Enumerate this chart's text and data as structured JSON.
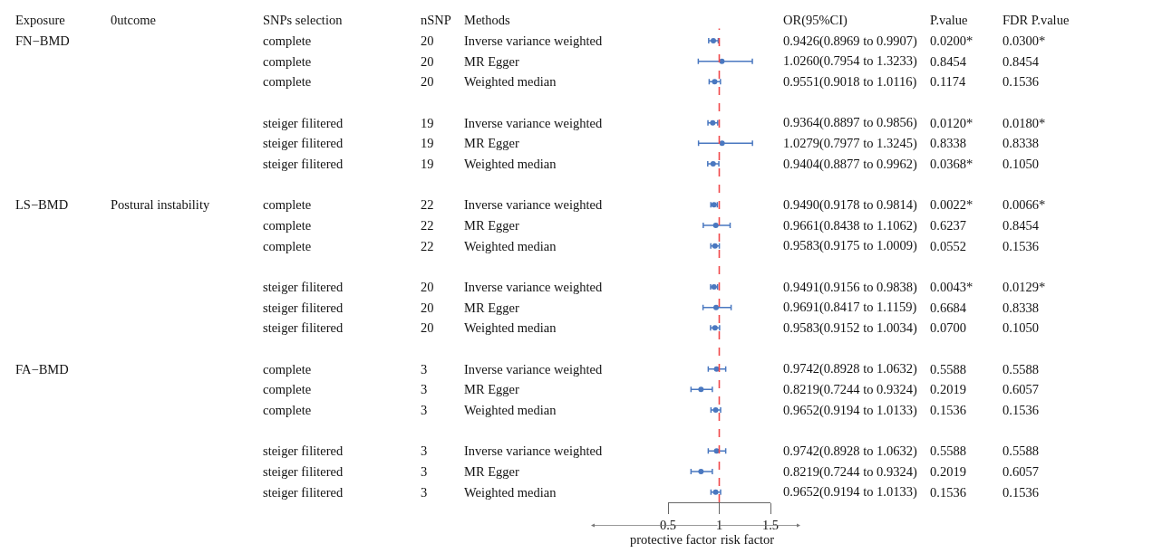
{
  "chart_data": {
    "type": "scatter",
    "orientation": "horizontal",
    "marker": "circle",
    "legend": false,
    "grid": false,
    "tick_labels": "x",
    "categories": [
      null,
      null,
      null,
      null,
      null,
      null,
      null,
      null,
      null,
      null,
      null,
      null,
      null,
      null,
      null,
      null,
      null,
      null,
      null,
      null,
      null,
      null,
      null
    ],
    "xlim": [
      0.5,
      1.5
    ],
    "xticks": [
      0.5,
      1,
      1.5
    ],
    "ref_lines": [
      {
        "axis": "x",
        "value": 1,
        "color": "#f0484a",
        "line_style": "dashed"
      }
    ],
    "annotations": [
      "protective factor",
      "risk factor"
    ],
    "series": [
      {
        "type": "other",
        "name": "Exposure",
        "values": [
          null,
          null,
          null,
          null,
          null,
          null,
          null,
          null,
          null,
          null,
          null,
          null,
          null,
          null,
          null,
          null,
          null,
          null,
          null,
          null,
          null,
          null,
          null
        ],
        "value_labels": [
          "FN−BMD",
          null,
          null,
          null,
          null,
          null,
          null,
          null,
          "LS−BMD",
          null,
          null,
          null,
          null,
          null,
          null,
          null,
          "FA−BMD",
          null,
          null,
          null,
          null,
          null,
          null
        ]
      },
      {
        "type": "other",
        "name": "0utcome",
        "values": [
          null,
          null,
          null,
          null,
          null,
          null,
          null,
          null,
          null,
          null,
          null,
          null,
          null,
          null,
          null,
          null,
          null,
          null,
          null,
          null,
          null,
          null,
          null
        ],
        "value_labels": [
          null,
          null,
          null,
          null,
          null,
          null,
          null,
          null,
          "Postural instability",
          null,
          null,
          null,
          null,
          null,
          null,
          null,
          null,
          null,
          null,
          null,
          null,
          null,
          null
        ]
      },
      {
        "type": "other",
        "name": "SNPs selection",
        "values": [
          null,
          null,
          null,
          null,
          null,
          null,
          null,
          null,
          null,
          null,
          null,
          null,
          null,
          null,
          null,
          null,
          null,
          null,
          null,
          null,
          null,
          null,
          null
        ],
        "value_labels": [
          "complete",
          "complete",
          "complete",
          null,
          "steiger filitered",
          "steiger filitered",
          "steiger filitered",
          null,
          "complete",
          "complete",
          "complete",
          null,
          "steiger filitered",
          "steiger filitered",
          "steiger filitered",
          null,
          "complete",
          "complete",
          "complete",
          null,
          "steiger filitered",
          "steiger filitered",
          "steiger filitered"
        ]
      },
      {
        "type": "other",
        "name": "nSNP",
        "values": [
          null,
          null,
          null,
          null,
          null,
          null,
          null,
          null,
          null,
          null,
          null,
          null,
          null,
          null,
          null,
          null,
          null,
          null,
          null,
          null,
          null,
          null,
          null
        ],
        "value_labels": [
          "20",
          "20",
          "20",
          null,
          "19",
          "19",
          "19",
          null,
          "22",
          "22",
          "22",
          null,
          "20",
          "20",
          "20",
          null,
          "3",
          "3",
          "3",
          null,
          "3",
          "3",
          "3"
        ]
      },
      {
        "type": "other",
        "name": "Methods",
        "values": [
          null,
          null,
          null,
          null,
          null,
          null,
          null,
          null,
          null,
          null,
          null,
          null,
          null,
          null,
          null,
          null,
          null,
          null,
          null,
          null,
          null,
          null,
          null
        ],
        "value_labels": [
          "Inverse variance weighted",
          "MR Egger",
          "Weighted median",
          null,
          "Inverse variance weighted",
          "MR Egger",
          "Weighted median",
          null,
          "Inverse variance weighted",
          "MR Egger",
          "Weighted median",
          null,
          "Inverse variance weighted",
          "MR Egger",
          "Weighted median",
          null,
          "Inverse variance weighted",
          "MR Egger",
          "Weighted median",
          null,
          "Inverse variance weighted",
          "MR Egger",
          "Weighted median"
        ]
      },
      {
        "name": "OR(95%CI)",
        "color": "#4a78c0",
        "values": [
          0.9426,
          1.026,
          0.9551,
          null,
          0.9364,
          1.0279,
          0.9404,
          null,
          0.949,
          0.9661,
          0.9583,
          null,
          0.9491,
          0.9691,
          0.9583,
          null,
          0.9742,
          0.8219,
          0.9652,
          null,
          0.9742,
          0.8219,
          0.9652
        ],
        "errors": [
          [
            0.8969,
            0.9907
          ],
          [
            0.7954,
            1.3233
          ],
          [
            0.9018,
            1.0116
          ],
          null,
          [
            0.8897,
            0.9856
          ],
          [
            0.7977,
            1.3245
          ],
          [
            0.8877,
            0.9962
          ],
          null,
          [
            0.9178,
            0.9814
          ],
          [
            0.8438,
            1.1062
          ],
          [
            0.9175,
            1.0009
          ],
          null,
          [
            0.9156,
            0.9838
          ],
          [
            0.8417,
            1.1159
          ],
          [
            0.9152,
            1.0034
          ],
          null,
          [
            0.8928,
            1.0632
          ],
          [
            0.7244,
            0.9324
          ],
          [
            0.9194,
            1.0133
          ],
          null,
          [
            0.8928,
            1.0632
          ],
          [
            0.7244,
            0.9324
          ],
          [
            0.9194,
            1.0133
          ]
        ],
        "value_labels": [
          "0.9426(0.8969 to 0.9907)",
          "1.0260(0.7954 to 1.3233)",
          "0.9551(0.9018 to 1.0116)",
          null,
          "0.9364(0.8897 to 0.9856)",
          "1.0279(0.7977 to 1.3245)",
          "0.9404(0.8877 to 0.9962)",
          null,
          "0.9490(0.9178 to 0.9814)",
          "0.9661(0.8438 to 1.1062)",
          "0.9583(0.9175 to 1.0009)",
          null,
          "0.9491(0.9156 to 0.9838)",
          "0.9691(0.8417 to 1.1159)",
          "0.9583(0.9152 to 1.0034)",
          null,
          "0.9742(0.8928 to 1.0632)",
          "0.8219(0.7244 to 0.9324)",
          "0.9652(0.9194 to 1.0133)",
          null,
          "0.9742(0.8928 to 1.0632)",
          "0.8219(0.7244 to 0.9324)",
          "0.9652(0.9194 to 1.0133)"
        ]
      },
      {
        "type": "other",
        "name": "P.value",
        "values": [
          null,
          null,
          null,
          null,
          null,
          null,
          null,
          null,
          null,
          null,
          null,
          null,
          null,
          null,
          null,
          null,
          null,
          null,
          null,
          null,
          null,
          null,
          null
        ],
        "value_labels": [
          "0.0200*",
          "0.8454",
          "0.1174",
          null,
          "0.0120*",
          "0.8338",
          "0.0368*",
          null,
          "0.0022*",
          "0.6237",
          "0.0552",
          null,
          "0.0043*",
          "0.6684",
          "0.0700",
          null,
          "0.5588",
          "0.2019",
          "0.1536",
          null,
          "0.5588",
          "0.2019",
          "0.1536"
        ]
      },
      {
        "type": "other",
        "name": "FDR P.value",
        "values": [
          null,
          null,
          null,
          null,
          null,
          null,
          null,
          null,
          null,
          null,
          null,
          null,
          null,
          null,
          null,
          null,
          null,
          null,
          null,
          null,
          null,
          null,
          null
        ],
        "value_labels": [
          "0.0300*",
          "0.8454",
          "0.1536",
          null,
          "0.0180*",
          "0.8338",
          "0.1050",
          null,
          "0.0066*",
          "0.8454",
          "0.1536",
          null,
          "0.0129*",
          "0.8338",
          "0.1050",
          null,
          "0.5588",
          "0.6057",
          "0.1536",
          null,
          "0.5588",
          "0.6057",
          "0.1536"
        ]
      }
    ]
  }
}
